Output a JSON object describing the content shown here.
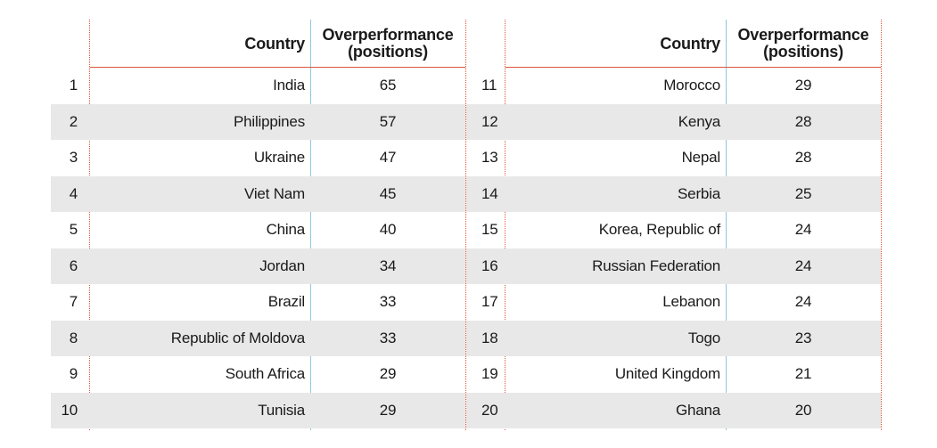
{
  "headers": {
    "country": "Country",
    "value_line1": "Overperformance",
    "value_line2": "(positions)"
  },
  "left": [
    {
      "rank": "1",
      "country": "India",
      "value": "65"
    },
    {
      "rank": "2",
      "country": "Philippines",
      "value": "57"
    },
    {
      "rank": "3",
      "country": "Ukraine",
      "value": "47"
    },
    {
      "rank": "4",
      "country": "Viet Nam",
      "value": "45"
    },
    {
      "rank": "5",
      "country": "China",
      "value": "40"
    },
    {
      "rank": "6",
      "country": "Jordan",
      "value": "34"
    },
    {
      "rank": "7",
      "country": "Brazil",
      "value": "33"
    },
    {
      "rank": "8",
      "country": "Republic of Moldova",
      "value": "33"
    },
    {
      "rank": "9",
      "country": "South Africa",
      "value": "29"
    },
    {
      "rank": "10",
      "country": "Tunisia",
      "value": "29"
    }
  ],
  "right": [
    {
      "rank": "11",
      "country": "Morocco",
      "value": "29"
    },
    {
      "rank": "12",
      "country": "Kenya",
      "value": "28"
    },
    {
      "rank": "13",
      "country": "Nepal",
      "value": "28"
    },
    {
      "rank": "14",
      "country": "Serbia",
      "value": "25"
    },
    {
      "rank": "15",
      "country": "Korea, Republic of",
      "value": "24"
    },
    {
      "rank": "16",
      "country": "Russian Federation",
      "value": "24"
    },
    {
      "rank": "17",
      "country": "Lebanon",
      "value": "24"
    },
    {
      "rank": "18",
      "country": "Togo",
      "value": "23"
    },
    {
      "rank": "19",
      "country": "United Kingdom",
      "value": "21"
    },
    {
      "rank": "20",
      "country": "Ghana",
      "value": "20"
    }
  ]
}
